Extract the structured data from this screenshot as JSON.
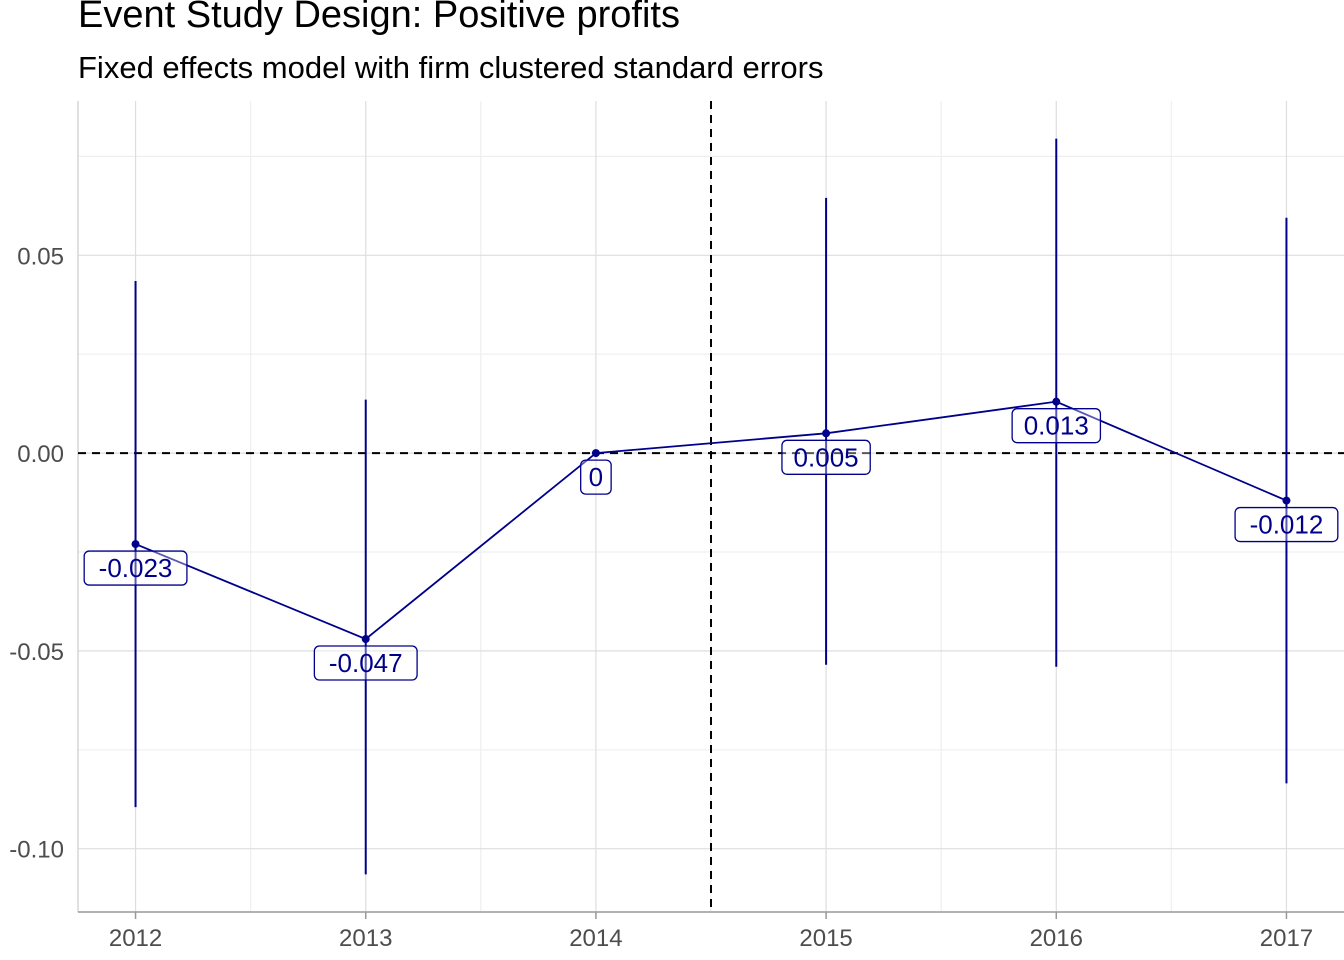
{
  "chart_data": {
    "type": "line",
    "title": "Event Study Design: Positive profits",
    "subtitle": "Fixed effects model with firm clustered standard errors",
    "xlabel": "",
    "ylabel": "",
    "x": [
      2012,
      2013,
      2014,
      2015,
      2016,
      2017
    ],
    "x_tick_labels": [
      "2012",
      "2013",
      "2014",
      "2015",
      "2016",
      "2017"
    ],
    "y_ticks": [
      0.05,
      0.0,
      -0.05,
      -0.1
    ],
    "y_tick_labels": [
      "0.05",
      "0.00",
      "-0.05",
      "-0.10"
    ],
    "xlim": [
      2011.75,
      2017.25
    ],
    "ylim": [
      -0.116,
      0.089
    ],
    "series": [
      {
        "estimate": [
          -0.023,
          -0.047,
          0.0,
          0.005,
          0.013,
          -0.012
        ],
        "ci_low": [
          -0.0895,
          -0.1065,
          0.0,
          -0.0535,
          -0.054,
          -0.0835
        ],
        "ci_high": [
          0.0435,
          0.0135,
          0.0,
          0.0645,
          0.0795,
          0.0595
        ],
        "labels": [
          "-0.023",
          "-0.047",
          "0",
          "0.005",
          "0.013",
          "-0.012"
        ]
      }
    ],
    "reference_lines": {
      "horizontal_y": 0.0,
      "vertical_x": 2014.5,
      "style": "dashed"
    },
    "grid": true,
    "colors": {
      "series": "#00008B",
      "grid_major": "#dedede",
      "grid_minor": "#efefef",
      "reference": "#000000",
      "axis_text": "#4d4d4d"
    }
  }
}
